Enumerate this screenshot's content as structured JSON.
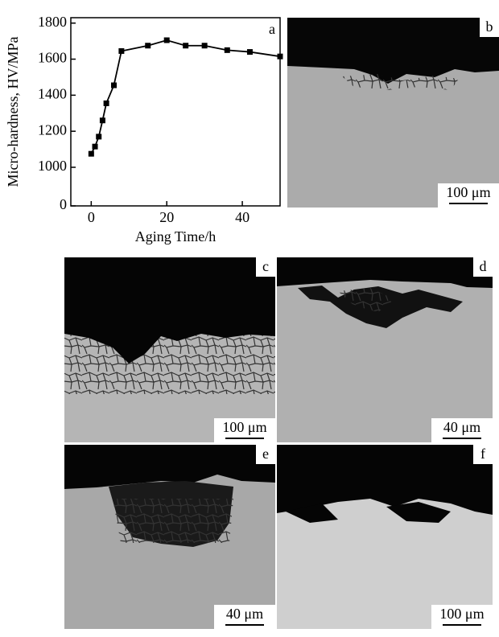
{
  "chart_data": {
    "type": "line",
    "panel_label": "a",
    "xlabel": "Aging Time/h",
    "ylabel": "Micro-hardness, HV/MPa",
    "x": [
      0,
      1,
      2,
      3,
      4,
      6,
      8,
      15,
      20,
      25,
      30,
      36,
      42,
      50
    ],
    "series": [
      {
        "color": "#000000",
        "values": [
          1075,
          1115,
          1170,
          1260,
          1355,
          1455,
          1645,
          1675,
          1705,
          1675,
          1675,
          1650,
          1640,
          1615
        ]
      }
    ],
    "xlim": [
      -5.4,
      50
    ],
    "xticks": [
      0,
      20,
      40
    ],
    "ylim": [
      0,
      1830
    ],
    "yticks": [
      0,
      1000,
      1200,
      1400,
      1600,
      1800
    ],
    "y_axis_break": true
  },
  "panels": [
    {
      "label": "b",
      "scale_bar": "100 μm"
    },
    {
      "label": "c",
      "scale_bar": "100 μm"
    },
    {
      "label": "d",
      "scale_bar": "40 μm"
    },
    {
      "label": "e",
      "scale_bar": "40 μm"
    },
    {
      "label": "f",
      "scale_bar": "100 μm"
    }
  ]
}
